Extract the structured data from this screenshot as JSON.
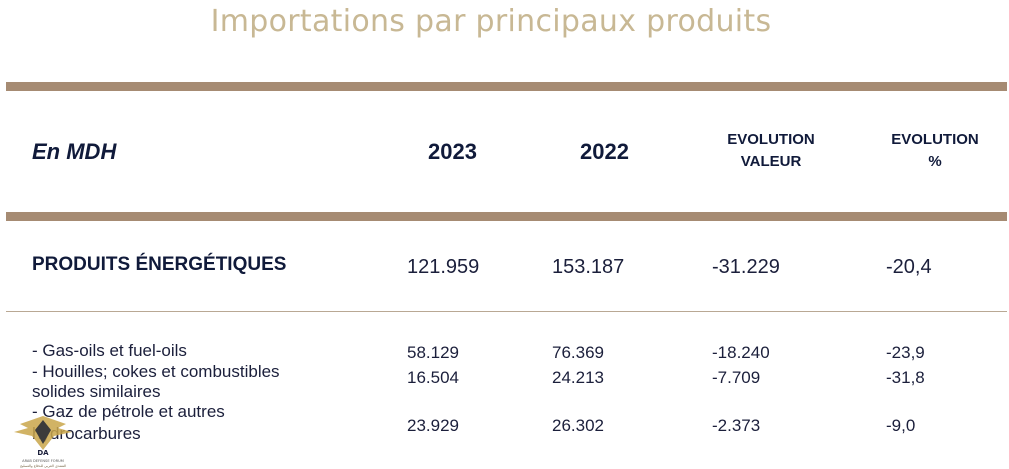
{
  "title": "Importations par principaux produits",
  "header": {
    "unit": "En MDH",
    "col_2023": "2023",
    "col_2022": "2022",
    "evo_value_line1": "EVOLUTION",
    "evo_value_line2": "VALEUR",
    "evo_pct_line1": "EVOLUTION",
    "evo_pct_line2": "%"
  },
  "category": {
    "label": "PRODUITS ÉNERGÉTIQUES",
    "v2023": "121.959",
    "v2022": "153.187",
    "evo_value": "-31.229",
    "evo_pct": "-20,4"
  },
  "rows": [
    {
      "label_line1": "- Gas-oils et fuel-oils",
      "label_line2": "",
      "v2023": "58.129",
      "v2022": "76.369",
      "evo_value": "-18.240",
      "evo_pct": "-23,9"
    },
    {
      "label_line1": "- Houilles; cokes et combustibles",
      "label_line2": "solides similaires",
      "v2023": "16.504",
      "v2022": "24.213",
      "evo_value": "-7.709",
      "evo_pct": "-31,8"
    },
    {
      "label_line1": "- Gaz de pétrole et autres",
      "label_line2": "hydrocarbures",
      "v2023": "23.929",
      "v2022": "26.302",
      "evo_value": "-2.373",
      "evo_pct": "-9,0"
    }
  ],
  "logo": {
    "initials": "DA",
    "line1": "ARAB DEFENSE FORUM",
    "line2": "المنتدى العربي للدفاع والتسليح"
  },
  "colors": {
    "title": "#c8b894",
    "bar": "#a68b73",
    "text_dark": "#101a3a"
  }
}
